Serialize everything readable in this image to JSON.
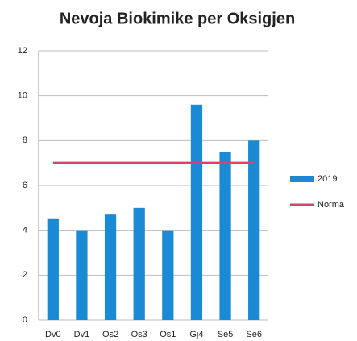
{
  "chart_data": {
    "type": "bar",
    "title": "Nevoja Biokimike per Oksigjen",
    "categories": [
      "Dv0",
      "Dv1",
      "Os2",
      "Os3",
      "Os1",
      "Gj4",
      "Se5",
      "Se6"
    ],
    "series": [
      {
        "name": "2019",
        "color": "#1a8ad4",
        "type": "bar",
        "values": [
          4.5,
          4.0,
          4.7,
          5.0,
          4.0,
          9.6,
          7.5,
          8.0
        ]
      },
      {
        "name": "Norma",
        "color": "#d9426b",
        "type": "line",
        "values": [
          7,
          7,
          7,
          7,
          7,
          7,
          7,
          7
        ]
      }
    ],
    "ylim": [
      0,
      12
    ],
    "yticks": [
      0,
      2,
      4,
      6,
      8,
      10,
      12
    ],
    "grid": true,
    "legend": "right"
  }
}
